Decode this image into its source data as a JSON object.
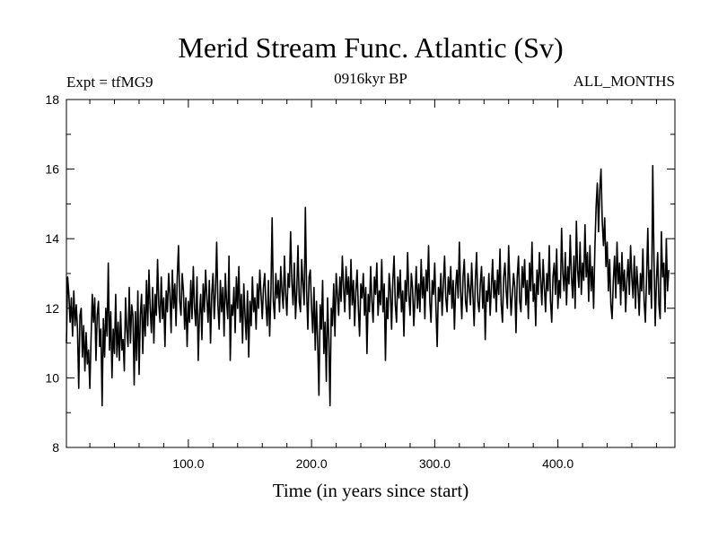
{
  "chart_data": {
    "type": "line",
    "title": "Merid Stream Func. Atlantic (Sv)",
    "subtitle": "0916kyr BP",
    "left_annotation": "Expt = tfMG9",
    "right_annotation": "ALL_MONTHS",
    "xlabel": "Time (in years since start)",
    "ylabel": "",
    "xlim": [
      1,
      495
    ],
    "ylim": [
      8,
      18
    ],
    "xticks": [
      100,
      200,
      300,
      400
    ],
    "xtick_labels": [
      "100.0",
      "200.0",
      "300.0",
      "400.0"
    ],
    "yticks": [
      8,
      10,
      12,
      14,
      16,
      18
    ],
    "ytick_labels": [
      "8",
      "10",
      "12",
      "14",
      "16",
      "18"
    ],
    "series": [
      {
        "name": "Merid Stream Func. Atlantic",
        "color": "#000000",
        "x_start": 1,
        "x_step": 1,
        "values": [
          11.0,
          12.9,
          12.4,
          11.6,
          12.3,
          11.2,
          12.5,
          11.5,
          12.1,
          11.4,
          9.7,
          11.8,
          12.0,
          10.6,
          11.5,
          10.2,
          11.3,
          10.4,
          10.8,
          9.7,
          11.1,
          12.4,
          11.6,
          12.3,
          10.5,
          11.8,
          12.2,
          10.9,
          11.4,
          9.2,
          11.7,
          10.6,
          12.0,
          11.2,
          13.3,
          10.8,
          11.9,
          10.0,
          11.4,
          10.7,
          12.4,
          10.6,
          11.6,
          10.5,
          11.9,
          10.8,
          11.1,
          10.2,
          12.3,
          11.4,
          10.9,
          12.6,
          11.0,
          12.1,
          11.8,
          9.8,
          11.9,
          10.5,
          12.5,
          10.1,
          11.8,
          12.4,
          10.7,
          12.1,
          11.2,
          12.8,
          11.5,
          13.1,
          12.0,
          11.3,
          12.6,
          11.0,
          12.4,
          11.8,
          13.4,
          12.1,
          11.6,
          12.9,
          11.7,
          12.3,
          10.9,
          12.5,
          11.9,
          13.0,
          12.4,
          11.3,
          13.1,
          12.0,
          12.7,
          11.5,
          12.9,
          13.8,
          12.2,
          11.8,
          13.0,
          12.5,
          11.4,
          12.3,
          10.9,
          12.2,
          11.6,
          12.8,
          11.7,
          13.2,
          12.0,
          11.5,
          12.9,
          10.5,
          11.8,
          12.4,
          11.1,
          12.7,
          11.9,
          13.1,
          12.3,
          11.6,
          12.8,
          11.0,
          12.4,
          13.0,
          11.7,
          12.5,
          13.9,
          12.1,
          11.4,
          12.8,
          11.9,
          12.6,
          11.2,
          13.0,
          12.2,
          11.7,
          13.5,
          10.5,
          12.1,
          11.8,
          12.6,
          11.3,
          12.9,
          12.0,
          13.2,
          11.6,
          12.4,
          11.0,
          12.7,
          11.8,
          11.1,
          12.5,
          10.6,
          12.2,
          11.5,
          12.9,
          11.9,
          12.3,
          11.4,
          12.7,
          12.0,
          13.1,
          12.4,
          11.7,
          12.6,
          13.0,
          12.1,
          11.5,
          12.8,
          11.2,
          12.4,
          14.6,
          12.2,
          11.7,
          13.0,
          12.3,
          12.8,
          11.9,
          13.2,
          12.5,
          12.0,
          13.5,
          12.4,
          11.8,
          13.0,
          12.6,
          14.2,
          12.8,
          12.1,
          13.3,
          11.7,
          12.5,
          13.8,
          12.2,
          11.9,
          13.4,
          12.7,
          12.1,
          14.9,
          12.5,
          11.4,
          12.9,
          13.1,
          12.0,
          11.3,
          12.6,
          10.8,
          12.2,
          11.0,
          9.5,
          12.1,
          11.4,
          12.8,
          10.7,
          11.6,
          9.9,
          12.3,
          11.1,
          9.2,
          12.0,
          11.5,
          12.7,
          11.2,
          13.0,
          12.4,
          11.8,
          12.9,
          12.2,
          13.5,
          12.6,
          11.9,
          13.2,
          12.4,
          12.9,
          11.7,
          13.4,
          12.1,
          12.8,
          11.5,
          12.5,
          13.1,
          12.0,
          11.2,
          12.7,
          12.3,
          13.0,
          11.8,
          12.6,
          10.7,
          12.4,
          11.9,
          13.2,
          12.2,
          11.6,
          12.9,
          12.4,
          13.3,
          11.8,
          12.5,
          12.1,
          13.4,
          11.9,
          12.7,
          10.5,
          12.3,
          11.7,
          13.0,
          12.5,
          11.4,
          12.8,
          13.5,
          12.1,
          11.6,
          12.9,
          12.3,
          13.1,
          11.9,
          12.5,
          11.2,
          12.8,
          12.2,
          13.6,
          12.4,
          11.8,
          13.0,
          12.6,
          11.5,
          12.3,
          13.2,
          12.0,
          12.7,
          11.9,
          13.4,
          12.3,
          12.9,
          11.7,
          13.1,
          12.5,
          13.8,
          12.2,
          11.6,
          12.8,
          12.4,
          13.3,
          12.0,
          10.9,
          12.6,
          12.2,
          13.0,
          11.8,
          12.7,
          13.5,
          12.3,
          11.9,
          12.9,
          12.4,
          13.2,
          12.0,
          12.8,
          11.4,
          12.6,
          13.1,
          12.3,
          13.9,
          12.5,
          11.7,
          12.9,
          13.4,
          12.2,
          11.9,
          13.0,
          12.6,
          12.1,
          13.3,
          12.4,
          11.5,
          12.8,
          13.6,
          12.2,
          11.9,
          12.7,
          13.2,
          12.0,
          12.9,
          11.1,
          12.5,
          12.2,
          13.0,
          11.8,
          12.6,
          13.4,
          12.3,
          12.8,
          11.9,
          13.1,
          12.4,
          13.7,
          12.1,
          11.6,
          12.9,
          13.3,
          12.5,
          12.0,
          13.8,
          12.7,
          11.8,
          12.4,
          13.0,
          12.6,
          11.3,
          12.9,
          13.5,
          12.2,
          11.9,
          13.2,
          12.6,
          13.4,
          12.1,
          12.8,
          11.7,
          13.3,
          12.5,
          13.9,
          12.2,
          12.7,
          11.5,
          13.1,
          12.4,
          13.6,
          12.8,
          12.1,
          13.4,
          12.6,
          11.9,
          13.0,
          12.5,
          13.8,
          12.2,
          11.6,
          12.9,
          13.3,
          12.4,
          13.7,
          12.0,
          12.8,
          12.3,
          14.3,
          13.0,
          12.5,
          13.6,
          12.1,
          13.2,
          12.7,
          14.1,
          12.9,
          12.3,
          13.5,
          12.0,
          14.5,
          13.1,
          12.6,
          13.9,
          12.4,
          13.3,
          12.8,
          14.4,
          12.9,
          13.6,
          12.2,
          13.8,
          12.5,
          13.2,
          12.0,
          13.7,
          14.9,
          15.6,
          14.2,
          15.4,
          16.0,
          14.5,
          13.8,
          14.6,
          13.2,
          13.9,
          12.5,
          13.4,
          12.1,
          11.7,
          12.8,
          13.5,
          12.3,
          13.9,
          12.7,
          13.3,
          12.1,
          13.6,
          12.5,
          13.1,
          11.9,
          12.8,
          13.4,
          12.4,
          13.8,
          12.9,
          12.3,
          13.5,
          12.0,
          13.2,
          12.6,
          11.8,
          13.0,
          12.5,
          13.7,
          12.2,
          11.6,
          12.9,
          14.3,
          12.4,
          13.1,
          12.0,
          16.1,
          13.4,
          11.5,
          12.8,
          13.6,
          12.1,
          11.7,
          14.2,
          12.9,
          13.3,
          11.9,
          14.0,
          12.5,
          13.1
        ]
      }
    ]
  }
}
